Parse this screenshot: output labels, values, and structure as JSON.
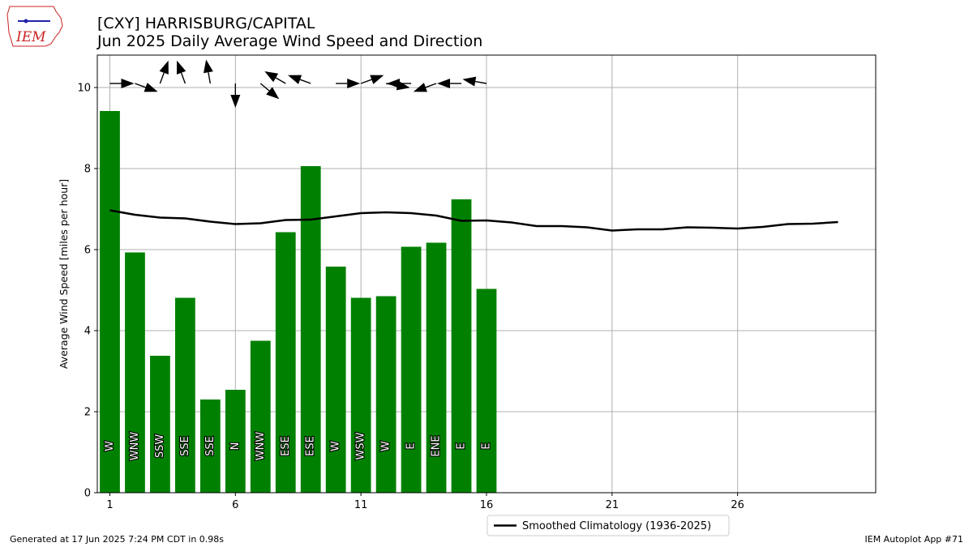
{
  "header": {
    "title_line1": "[CXY] HARRISBURG/CAPITAL",
    "title_line2": "Jun 2025 Daily Average Wind Speed and Direction",
    "logo_text": "IEM"
  },
  "footer": {
    "generated": "Generated at 17 Jun 2025 7:24 PM CDT in 0.98s",
    "app": "IEM Autoplot App #71"
  },
  "colors": {
    "bar": "#008000",
    "climatology_line": "#000000",
    "grid": "#b0b0b0",
    "logo_red": "#cc2222",
    "logo_blue": "#2222aa"
  },
  "chart_data": {
    "type": "bar",
    "ylabel": "Average Wind Speed [miles per hour]",
    "xlabel": "",
    "xlim": [
      0.5,
      31.5
    ],
    "ylim": [
      0,
      10.8
    ],
    "xticks": [
      1,
      6,
      11,
      16,
      21,
      26
    ],
    "yticks": [
      0,
      2,
      4,
      6,
      8,
      10
    ],
    "grid": true,
    "legend": {
      "placement": "bottom-center",
      "entries": [
        "Smoothed Climatology (1936-2025)"
      ]
    },
    "bars": {
      "days": [
        1,
        2,
        3,
        4,
        5,
        6,
        7,
        8,
        9,
        10,
        11,
        12,
        13,
        14,
        15,
        16
      ],
      "values": [
        9.42,
        5.93,
        3.38,
        4.81,
        2.3,
        2.54,
        3.75,
        6.43,
        8.06,
        5.58,
        4.81,
        4.85,
        6.07,
        6.17,
        7.24,
        5.03
      ],
      "direction_labels": [
        "W",
        "WNW",
        "SSW",
        "SSE",
        "SSE",
        "N",
        "WNW",
        "ESE",
        "ESE",
        "W",
        "WSW",
        "W",
        "E",
        "ENE",
        "E",
        "E"
      ],
      "arrow_bearing_deg": [
        90,
        110,
        20,
        340,
        350,
        180,
        130,
        300,
        290,
        90,
        70,
        100,
        270,
        250,
        270,
        280
      ]
    },
    "series": [
      {
        "name": "Smoothed Climatology (1936-2025)",
        "x": [
          1,
          2,
          3,
          4,
          5,
          6,
          7,
          8,
          9,
          10,
          11,
          12,
          13,
          14,
          15,
          16,
          17,
          18,
          19,
          20,
          21,
          22,
          23,
          24,
          25,
          26,
          27,
          28,
          29,
          30
        ],
        "values": [
          6.97,
          6.86,
          6.79,
          6.77,
          6.69,
          6.63,
          6.65,
          6.73,
          6.74,
          6.82,
          6.9,
          6.92,
          6.9,
          6.84,
          6.71,
          6.72,
          6.67,
          6.58,
          6.58,
          6.55,
          6.47,
          6.5,
          6.5,
          6.55,
          6.54,
          6.52,
          6.56,
          6.63,
          6.64,
          6.68
        ]
      }
    ]
  }
}
